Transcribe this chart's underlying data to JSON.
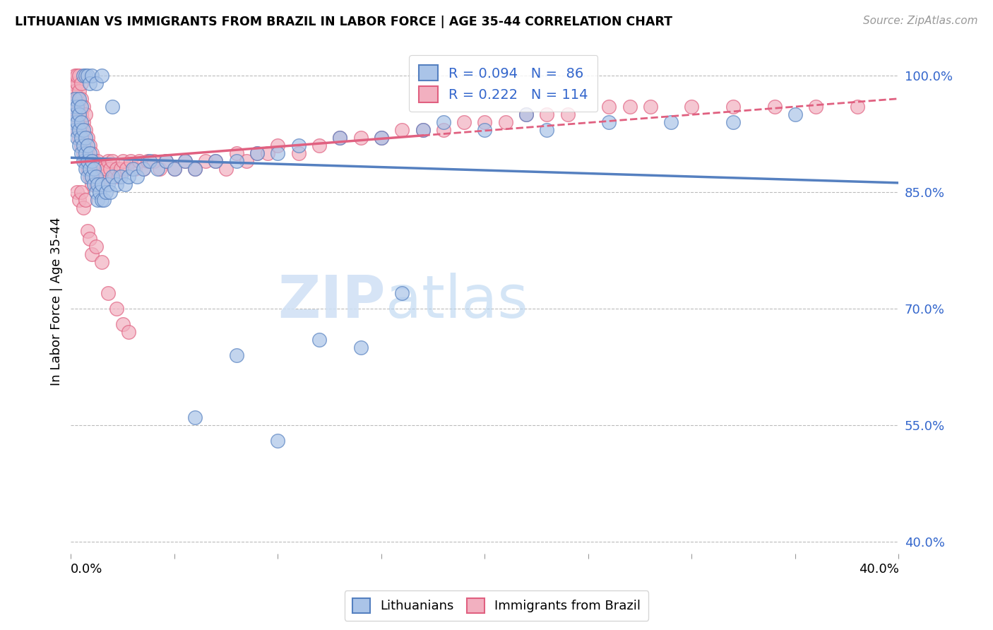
{
  "title": "LITHUANIAN VS IMMIGRANTS FROM BRAZIL IN LABOR FORCE | AGE 35-44 CORRELATION CHART",
  "source": "Source: ZipAtlas.com",
  "ylabel": "In Labor Force | Age 35-44",
  "ytick_labels": [
    "100.0%",
    "85.0%",
    "70.0%",
    "55.0%",
    "40.0%"
  ],
  "ytick_vals": [
    1.0,
    0.85,
    0.7,
    0.55,
    0.4
  ],
  "xmin": 0.0,
  "xmax": 0.4,
  "ymin": 0.385,
  "ymax": 1.035,
  "R_blue": 0.094,
  "N_blue": 86,
  "R_pink": 0.222,
  "N_pink": 114,
  "blue_face": "#aac4e8",
  "blue_edge": "#5580c0",
  "pink_face": "#f2b0c0",
  "pink_edge": "#e06080",
  "blue_line": "#5580c0",
  "pink_line": "#e06080",
  "watermark_color": "#cfe0f5",
  "blue_x": [
    0.001,
    0.001,
    0.002,
    0.002,
    0.002,
    0.003,
    0.003,
    0.003,
    0.004,
    0.004,
    0.004,
    0.004,
    0.005,
    0.005,
    0.005,
    0.005,
    0.006,
    0.006,
    0.006,
    0.007,
    0.007,
    0.007,
    0.008,
    0.008,
    0.008,
    0.009,
    0.009,
    0.01,
    0.01,
    0.011,
    0.011,
    0.012,
    0.012,
    0.013,
    0.013,
    0.014,
    0.015,
    0.015,
    0.016,
    0.017,
    0.018,
    0.019,
    0.02,
    0.022,
    0.024,
    0.026,
    0.028,
    0.03,
    0.032,
    0.035,
    0.038,
    0.042,
    0.046,
    0.05,
    0.055,
    0.06,
    0.07,
    0.08,
    0.09,
    0.1,
    0.11,
    0.13,
    0.15,
    0.17,
    0.2,
    0.23,
    0.26,
    0.29,
    0.32,
    0.35,
    0.006,
    0.007,
    0.008,
    0.009,
    0.01,
    0.012,
    0.015,
    0.02,
    0.18,
    0.22,
    0.12,
    0.14,
    0.16,
    0.06,
    0.08,
    0.1
  ],
  "blue_y": [
    0.94,
    0.96,
    0.93,
    0.95,
    0.97,
    0.92,
    0.94,
    0.96,
    0.91,
    0.93,
    0.95,
    0.97,
    0.9,
    0.92,
    0.94,
    0.96,
    0.89,
    0.91,
    0.93,
    0.88,
    0.9,
    0.92,
    0.87,
    0.89,
    0.91,
    0.88,
    0.9,
    0.87,
    0.89,
    0.86,
    0.88,
    0.85,
    0.87,
    0.84,
    0.86,
    0.85,
    0.84,
    0.86,
    0.84,
    0.85,
    0.86,
    0.85,
    0.87,
    0.86,
    0.87,
    0.86,
    0.87,
    0.88,
    0.87,
    0.88,
    0.89,
    0.88,
    0.89,
    0.88,
    0.89,
    0.88,
    0.89,
    0.89,
    0.9,
    0.9,
    0.91,
    0.92,
    0.92,
    0.93,
    0.93,
    0.93,
    0.94,
    0.94,
    0.94,
    0.95,
    1.0,
    1.0,
    1.0,
    0.99,
    1.0,
    0.99,
    1.0,
    0.96,
    0.94,
    0.95,
    0.66,
    0.65,
    0.72,
    0.56,
    0.64,
    0.53
  ],
  "pink_x": [
    0.001,
    0.001,
    0.001,
    0.002,
    0.002,
    0.002,
    0.002,
    0.003,
    0.003,
    0.003,
    0.003,
    0.003,
    0.004,
    0.004,
    0.004,
    0.004,
    0.004,
    0.005,
    0.005,
    0.005,
    0.005,
    0.005,
    0.006,
    0.006,
    0.006,
    0.006,
    0.007,
    0.007,
    0.007,
    0.007,
    0.008,
    0.008,
    0.008,
    0.009,
    0.009,
    0.009,
    0.01,
    0.01,
    0.01,
    0.011,
    0.011,
    0.012,
    0.012,
    0.013,
    0.013,
    0.014,
    0.015,
    0.015,
    0.016,
    0.017,
    0.018,
    0.019,
    0.02,
    0.021,
    0.022,
    0.023,
    0.024,
    0.025,
    0.027,
    0.029,
    0.031,
    0.033,
    0.035,
    0.037,
    0.04,
    0.043,
    0.046,
    0.05,
    0.055,
    0.06,
    0.065,
    0.07,
    0.075,
    0.08,
    0.085,
    0.09,
    0.095,
    0.1,
    0.11,
    0.12,
    0.13,
    0.14,
    0.15,
    0.16,
    0.17,
    0.18,
    0.19,
    0.2,
    0.21,
    0.22,
    0.23,
    0.24,
    0.26,
    0.27,
    0.28,
    0.3,
    0.32,
    0.34,
    0.36,
    0.38,
    0.003,
    0.004,
    0.005,
    0.006,
    0.007,
    0.008,
    0.009,
    0.01,
    0.012,
    0.015,
    0.018,
    0.022,
    0.025,
    0.028
  ],
  "pink_y": [
    0.95,
    0.97,
    0.99,
    0.94,
    0.96,
    0.98,
    1.0,
    0.93,
    0.95,
    0.97,
    0.99,
    1.0,
    0.92,
    0.94,
    0.96,
    0.98,
    1.0,
    0.91,
    0.93,
    0.95,
    0.97,
    0.99,
    0.9,
    0.92,
    0.94,
    0.96,
    0.89,
    0.91,
    0.93,
    0.95,
    0.88,
    0.9,
    0.92,
    0.87,
    0.89,
    0.91,
    0.86,
    0.88,
    0.9,
    0.87,
    0.89,
    0.86,
    0.88,
    0.87,
    0.89,
    0.87,
    0.86,
    0.88,
    0.87,
    0.88,
    0.89,
    0.88,
    0.89,
    0.87,
    0.88,
    0.87,
    0.88,
    0.89,
    0.88,
    0.89,
    0.88,
    0.89,
    0.88,
    0.89,
    0.89,
    0.88,
    0.89,
    0.88,
    0.89,
    0.88,
    0.89,
    0.89,
    0.88,
    0.9,
    0.89,
    0.9,
    0.9,
    0.91,
    0.9,
    0.91,
    0.92,
    0.92,
    0.92,
    0.93,
    0.93,
    0.93,
    0.94,
    0.94,
    0.94,
    0.95,
    0.95,
    0.95,
    0.96,
    0.96,
    0.96,
    0.96,
    0.96,
    0.96,
    0.96,
    0.96,
    0.85,
    0.84,
    0.85,
    0.83,
    0.84,
    0.8,
    0.79,
    0.77,
    0.78,
    0.76,
    0.72,
    0.7,
    0.68,
    0.67
  ]
}
